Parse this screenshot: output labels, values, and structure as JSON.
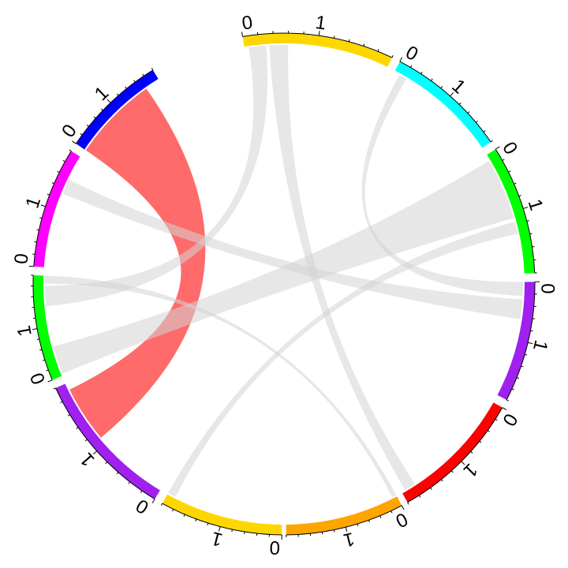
{
  "chart_data": {
    "type": "chord",
    "title": "",
    "sectors": [
      {
        "id": "s-gold-top",
        "color": "#FFD700",
        "start": 0,
        "end": 1
      },
      {
        "id": "s-cyan",
        "color": "#00FFFF",
        "start": 0,
        "end": 1
      },
      {
        "id": "s-green-right",
        "color": "#00FF00",
        "start": 0,
        "end": 1
      },
      {
        "id": "s-purple-right",
        "color": "#A020F0",
        "start": 0,
        "end": 1
      },
      {
        "id": "s-red",
        "color": "#FF0000",
        "start": 0,
        "end": 1
      },
      {
        "id": "s-orange",
        "color": "#FFA500",
        "start": 0,
        "end": 1
      },
      {
        "id": "s-gold-bottom",
        "color": "#FFD700",
        "start": 0,
        "end": 1
      },
      {
        "id": "s-purple-left",
        "color": "#A020F0",
        "start": 0,
        "end": 1
      },
      {
        "id": "s-green-left",
        "color": "#00FF00",
        "start": 0,
        "end": 1
      },
      {
        "id": "s-magenta",
        "color": "#FF00FF",
        "start": 0,
        "end": 1
      },
      {
        "id": "s-blue",
        "color": "#0000FF",
        "start": 0,
        "end": 1
      }
    ],
    "tick_labels": [
      "0",
      "1"
    ],
    "links": [
      {
        "from": "s-blue",
        "from_range": [
          0.0,
          0.85
        ],
        "to": "s-purple-left",
        "to_range": [
          0.55,
          0.95
        ],
        "color": "#FF5A5A",
        "highlight": true
      },
      {
        "from": "s-gold-top",
        "from_range": [
          0.03,
          0.15
        ],
        "to": "s-green-left",
        "to_range": [
          0.7,
          0.9
        ],
        "color": "#D3D3D3"
      },
      {
        "from": "s-gold-top",
        "from_range": [
          0.17,
          0.3
        ],
        "to": "s-red",
        "to_range": [
          0.88,
          0.97
        ],
        "color": "#D3D3D3"
      },
      {
        "from": "s-cyan",
        "from_range": [
          0.05,
          0.12
        ],
        "to": "s-purple-right",
        "to_range": [
          0.0,
          0.12
        ],
        "color": "#D3D3D3"
      },
      {
        "from": "s-green-right",
        "from_range": [
          0.05,
          0.55
        ],
        "to": "s-green-left",
        "to_range": [
          0.02,
          0.3
        ],
        "color": "#D3D3D3"
      },
      {
        "from": "s-green-right",
        "from_range": [
          0.58,
          0.68
        ],
        "to": "s-gold-bottom",
        "to_range": [
          0.93,
          1.0
        ],
        "color": "#D3D3D3"
      },
      {
        "from": "s-magenta",
        "from_range": [
          0.65,
          0.78
        ],
        "to": "s-purple-right",
        "to_range": [
          0.15,
          0.32
        ],
        "color": "#D3D3D3"
      },
      {
        "from": "s-green-left",
        "from_range": [
          0.92,
          1.0
        ],
        "to": "s-orange",
        "to_range": [
          0.0,
          0.04
        ],
        "color": "#D3D3D3"
      }
    ]
  }
}
